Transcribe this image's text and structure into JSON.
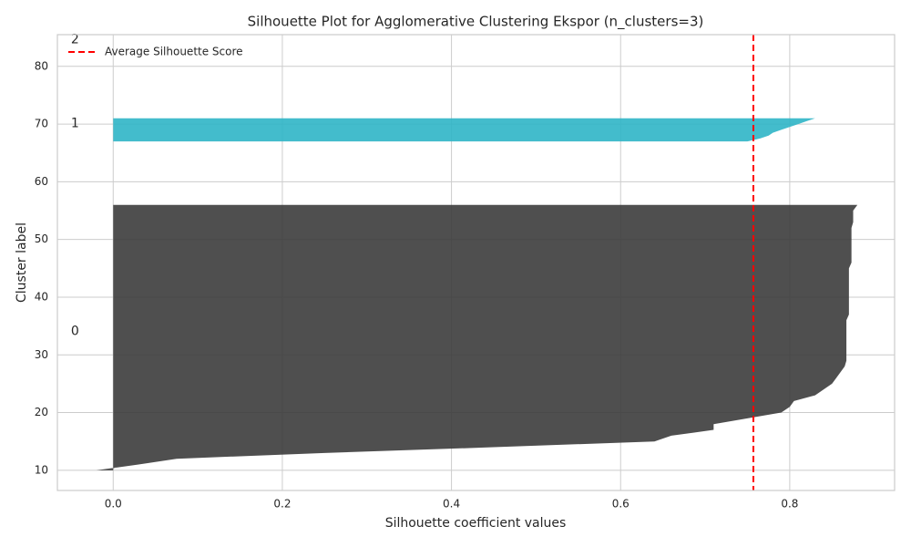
{
  "chart_data": {
    "type": "silhouette",
    "title": "Silhouette Plot for Agglomerative Clustering Ekspor (n_clusters=3)",
    "x_label": "Silhouette coefficient values",
    "y_label": "Cluster label",
    "xlim": [
      -0.066,
      0.924
    ],
    "ylim": [
      6.5,
      85.5
    ],
    "xticks": [
      {
        "value": 0,
        "label": "0.0"
      },
      0.2,
      0.4,
      0.6,
      0.8
    ],
    "yticks": [
      10,
      20,
      30,
      40,
      50,
      60,
      70,
      80
    ],
    "grid": true,
    "legend": "upper left",
    "average": {
      "name": "Average Silhouette Score",
      "value": 0.757,
      "color": "#ff0000"
    },
    "series": [
      {
        "name": "0",
        "color": "#3c3c3c",
        "y": [
          10,
          11,
          12,
          13,
          14,
          15,
          16,
          17,
          18,
          19,
          20,
          21,
          22,
          23,
          24,
          25,
          26,
          27,
          28,
          29,
          30,
          31,
          32,
          33,
          34,
          35,
          36,
          37,
          38,
          39,
          40,
          41,
          42,
          43,
          44,
          45,
          46,
          47,
          48,
          49,
          50,
          51,
          52,
          53,
          54,
          55,
          56
        ],
        "x": [
          -0.02,
          0.03,
          0.075,
          0.25,
          0.45,
          0.64,
          0.66,
          0.71,
          0.71,
          0.75,
          0.79,
          0.8,
          0.805,
          0.83,
          0.84,
          0.85,
          0.855,
          0.86,
          0.865,
          0.867,
          0.867,
          0.867,
          0.867,
          0.867,
          0.867,
          0.867,
          0.867,
          0.87,
          0.87,
          0.87,
          0.87,
          0.87,
          0.87,
          0.87,
          0.87,
          0.87,
          0.873,
          0.873,
          0.873,
          0.873,
          0.873,
          0.873,
          0.873,
          0.875,
          0.875,
          0.875,
          0.88
        ]
      },
      {
        "name": "1",
        "color": "#2fb5c6",
        "y": [
          67,
          67.5,
          68,
          68.5,
          69,
          69.5,
          70,
          70.5,
          71
        ],
        "x": [
          0.75,
          0.765,
          0.775,
          0.78,
          0.79,
          0.8,
          0.81,
          0.82,
          0.83
        ]
      },
      {
        "name": "2",
        "color": "#8c8c8c",
        "y": [
          82.5,
          84.5
        ],
        "x": [
          0,
          0
        ]
      }
    ]
  }
}
